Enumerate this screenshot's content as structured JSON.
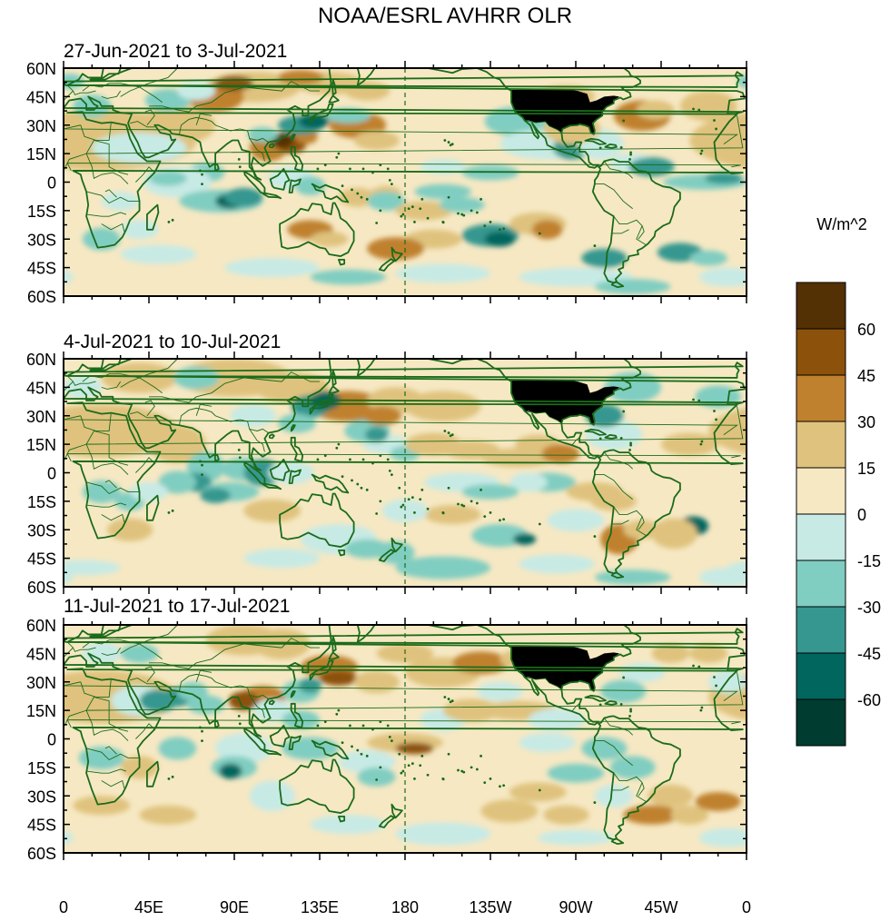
{
  "title": "NOAA/ESRL AVHRR OLR",
  "units": "W/m^2",
  "panels": [
    {
      "period": "27-Jun-2021 to 3-Jul-2021"
    },
    {
      "period": "4-Jul-2021 to 10-Jul-2021"
    },
    {
      "period": "11-Jul-2021 to 17-Jul-2021"
    }
  ],
  "lat_labels": [
    "60N",
    "45N",
    "30N",
    "15N",
    "0",
    "15S",
    "30S",
    "45S",
    "60S"
  ],
  "lon_labels": [
    "0",
    "45E",
    "90E",
    "135E",
    "180",
    "135W",
    "90W",
    "45W",
    "0"
  ],
  "colorbar": {
    "levels": [
      "60",
      "45",
      "30",
      "15",
      "0",
      "-15",
      "-30",
      "-45",
      "-60"
    ],
    "colors": [
      "#543005",
      "#8c510a",
      "#bf812d",
      "#dfc27d",
      "#f6e8c3",
      "#c7eae5",
      "#80cdc1",
      "#35978f",
      "#01665e",
      "#003c30"
    ]
  },
  "colors": {
    "coast": "#1a6b1a",
    "dateline": "#1a6b1a",
    "background": "#f6e8c3",
    "usa_mask": "#000000"
  }
}
